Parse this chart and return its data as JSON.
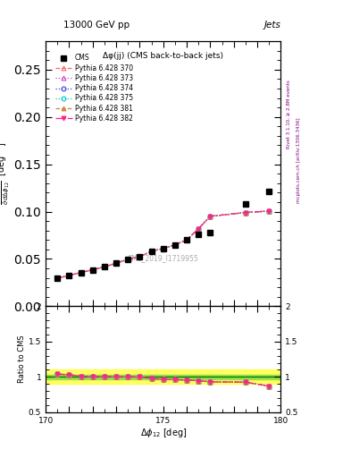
{
  "title_top": "13000 GeV pp",
  "title_top_right": "Jets",
  "plot_title": "Δφ(jj) (CMS back-to-back jets)",
  "watermark": "CMS_2019_I1719955",
  "xlabel": "Δφ₁₂ [deg]",
  "ylabel": "¹⁄σ dσ/dΔφ₁₂  [deg⁻¹]",
  "ylabel_ratio": "Ratio to CMS",
  "right_label1": "Rivet 3.1.10, ≥ 2.8M events",
  "right_label2": "mcplots.cern.ch [arXiv:1306.3436]",
  "xlim": [
    170,
    180
  ],
  "ylim_main": [
    0.0,
    0.28
  ],
  "ylim_ratio": [
    0.5,
    2.0
  ],
  "yticks_main": [
    0.0,
    0.05,
    0.1,
    0.15,
    0.2,
    0.25
  ],
  "yticks_ratio": [
    0.5,
    1.0,
    1.5,
    2.0
  ],
  "cms_x": [
    170.5,
    171.0,
    171.5,
    172.0,
    172.5,
    173.0,
    173.5,
    174.0,
    174.5,
    175.0,
    175.5,
    176.0,
    176.5,
    177.0,
    178.5,
    179.5
  ],
  "cms_y": [
    0.0295,
    0.0325,
    0.0355,
    0.0385,
    0.0415,
    0.0455,
    0.0495,
    0.0525,
    0.058,
    0.061,
    0.065,
    0.07,
    0.0755,
    0.078,
    0.1085,
    0.121
  ],
  "pythia_x": [
    170.5,
    171.0,
    171.5,
    172.0,
    172.5,
    173.0,
    173.5,
    174.0,
    174.5,
    175.0,
    175.5,
    176.0,
    176.5,
    177.0,
    178.5,
    179.5
  ],
  "pythia_y": [
    0.0295,
    0.0325,
    0.0355,
    0.0385,
    0.0415,
    0.0455,
    0.0495,
    0.0525,
    0.058,
    0.061,
    0.065,
    0.07,
    0.082,
    0.095,
    0.099,
    0.1005
  ],
  "ratio_x": [
    170.5,
    171.0,
    171.5,
    172.0,
    172.5,
    173.0,
    173.5,
    174.0,
    174.5,
    175.0,
    175.5,
    176.0,
    176.5,
    177.0,
    178.5,
    179.5
  ],
  "ratio_y": [
    1.04,
    1.03,
    1.01,
    1.005,
    1.005,
    1.003,
    1.0,
    0.998,
    0.975,
    0.967,
    0.96,
    0.955,
    0.945,
    0.93,
    0.925,
    0.87
  ],
  "band_yellow": [
    0.9,
    1.1
  ],
  "band_green": [
    0.965,
    1.035
  ],
  "series": [
    {
      "label": "Pythia 6.428 370",
      "color": "#ff6666",
      "linestyle": "--",
      "marker": "^",
      "filled": false
    },
    {
      "label": "Pythia 6.428 373",
      "color": "#cc44cc",
      "linestyle": ":",
      "marker": "^",
      "filled": false
    },
    {
      "label": "Pythia 6.428 374",
      "color": "#4444dd",
      "linestyle": ":",
      "marker": "o",
      "filled": false
    },
    {
      "label": "Pythia 6.428 375",
      "color": "#00cccc",
      "linestyle": ":",
      "marker": "o",
      "filled": false
    },
    {
      "label": "Pythia 6.428 381",
      "color": "#cc8844",
      "linestyle": "--",
      "marker": "^",
      "filled": true
    },
    {
      "label": "Pythia 6.428 382",
      "color": "#ff2288",
      "linestyle": "-.",
      "marker": "v",
      "filled": true
    }
  ]
}
